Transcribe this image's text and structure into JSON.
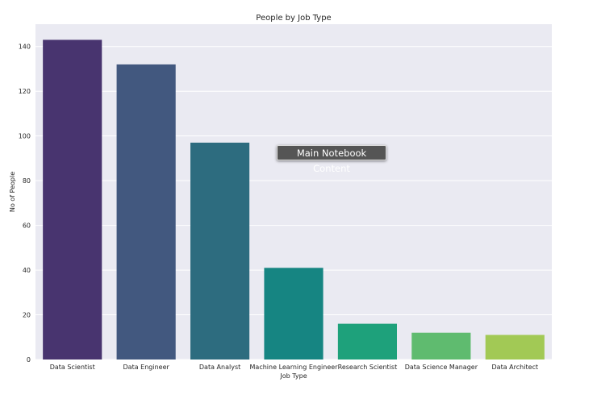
{
  "tooltip": {
    "label": "Main Notebook Content"
  },
  "chart_data": {
    "type": "bar",
    "title": "People by Job Type",
    "xlabel": "Job Type",
    "ylabel": "No of People",
    "categories": [
      "Data Scientist",
      "Data Engineer",
      "Data Analyst",
      "Machine Learning Engineer",
      "Research Scientist",
      "Data Science Manager",
      "Data Architect"
    ],
    "values": [
      143,
      132,
      97,
      41,
      16,
      12,
      11
    ],
    "colors": [
      "#48346f",
      "#42587f",
      "#2d6c7f",
      "#168582",
      "#1ea17b",
      "#5fbb6f",
      "#a2c955"
    ],
    "ylim": [
      0,
      150
    ],
    "yticks": [
      0,
      20,
      40,
      60,
      80,
      100,
      120,
      140
    ],
    "grid": true,
    "background": "#eaeaf2",
    "gridColor": "#ffffff"
  }
}
